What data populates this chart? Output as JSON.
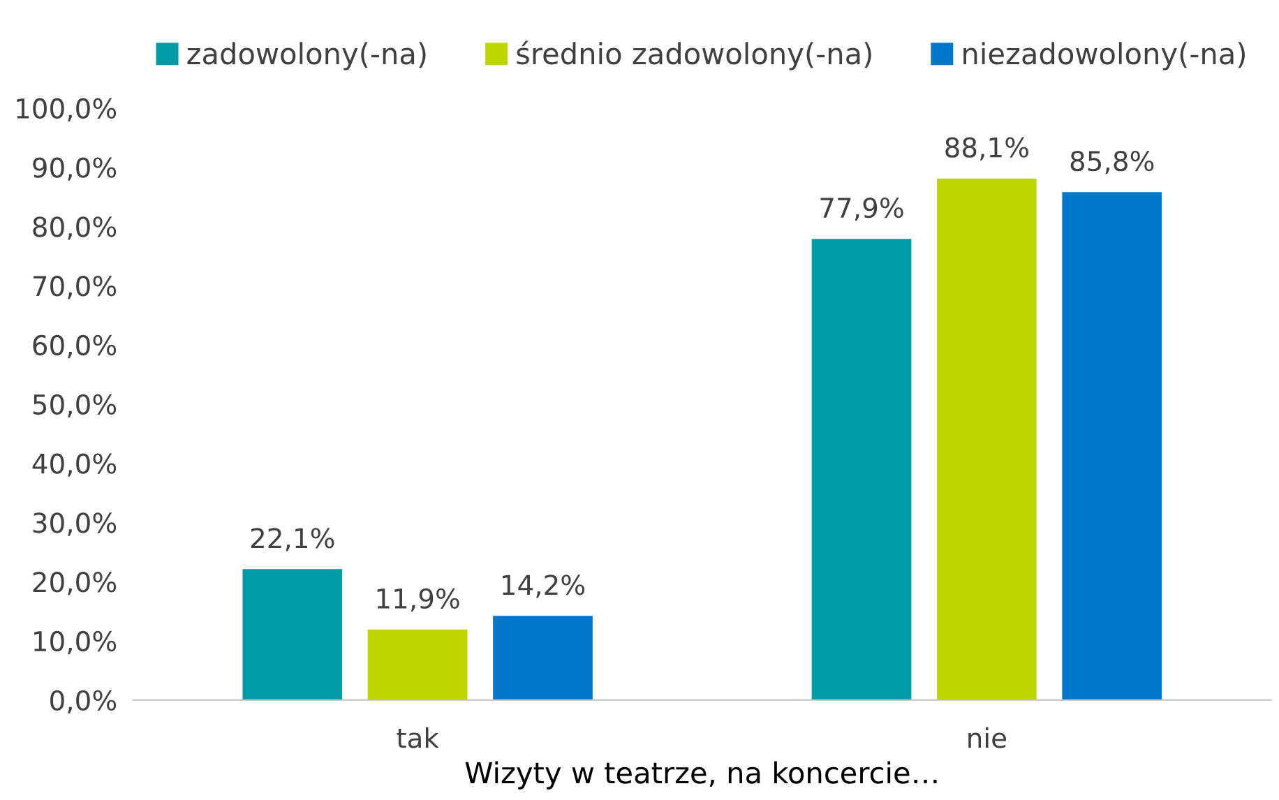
{
  "chart_data": {
    "type": "bar",
    "xlabel": "Wizyty w teatrze, na koncercie…",
    "categories": [
      "tak",
      "nie"
    ],
    "series": [
      {
        "name": "zadowolony(-na)",
        "color": "#009ba4",
        "values": [
          22.1,
          77.9
        ],
        "value_labels": [
          "22,1%",
          "77,9%"
        ]
      },
      {
        "name": "średnio zadowolony(-na)",
        "color": "#bed600",
        "values": [
          11.9,
          88.1
        ],
        "value_labels": [
          "11,9%",
          "88,1%"
        ]
      },
      {
        "name": "niezadowolony(-na)",
        "color": "#0077c8",
        "values": [
          14.2,
          85.8
        ],
        "value_labels": [
          "14,2%",
          "85,8%"
        ]
      }
    ],
    "ylim": [
      0,
      100
    ],
    "yticks": [
      {
        "value": 0,
        "label": "0,0%"
      },
      {
        "value": 10,
        "label": "10,0%"
      },
      {
        "value": 20,
        "label": "20,0%"
      },
      {
        "value": 30,
        "label": "30,0%"
      },
      {
        "value": 40,
        "label": "40,0%"
      },
      {
        "value": 50,
        "label": "50,0%"
      },
      {
        "value": 60,
        "label": "60,0%"
      },
      {
        "value": 70,
        "label": "70,0%"
      },
      {
        "value": 80,
        "label": "80,0%"
      },
      {
        "value": 90,
        "label": "90,0%"
      },
      {
        "value": 100,
        "label": "100,0%"
      }
    ],
    "grid": false,
    "legend": "top"
  }
}
